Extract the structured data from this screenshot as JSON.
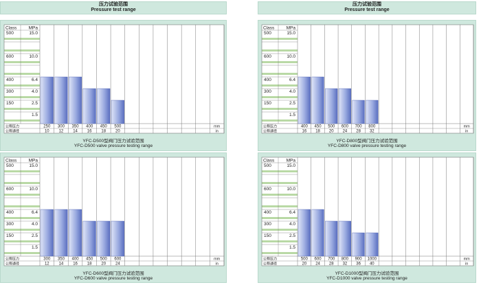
{
  "left_column": {
    "title_zh": "压力试验范围",
    "title_en": "Pressure test range"
  },
  "right_column": {
    "title_zh": "压力试验范围",
    "title_en": "Pressure test range"
  },
  "labels": {
    "class": "Class",
    "mpa": "MPa",
    "nominal_size": "公称压力",
    "nominal_bore": "公称通径",
    "mm": "mm",
    "in": "in"
  },
  "y_ticks": [
    {
      "class": "500",
      "mpa": "15.0"
    },
    {
      "class": "",
      "mpa": ""
    },
    {
      "class": "600",
      "mpa": "10.0"
    },
    {
      "class": "",
      "mpa": ""
    },
    {
      "class": "400",
      "mpa": "6.4"
    },
    {
      "class": "300",
      "mpa": "4.0"
    },
    {
      "class": "150",
      "mpa": "2.5"
    },
    {
      "class": "",
      "mpa": "1.5"
    }
  ],
  "chart_data": [
    {
      "type": "bar",
      "caption_zh": "YFC-D500型阀门压力试验范围",
      "caption_en": "YFC-D500 valve pressure testing range",
      "categories_mm": [
        "250",
        "300",
        "350",
        "400",
        "450",
        "500"
      ],
      "categories_in": [
        "10",
        "12",
        "14",
        "16",
        "18",
        "20"
      ],
      "values": [
        6.4,
        6.4,
        6.4,
        4.0,
        4.0,
        2.5
      ],
      "empty_columns": 7
    },
    {
      "type": "bar",
      "caption_zh": "YFC-D600型阀门压力试验范围",
      "caption_en": "YFC-D600 valve pressure testing range",
      "categories_mm": [
        "300",
        "350",
        "400",
        "450",
        "500",
        "600"
      ],
      "categories_in": [
        "12",
        "14",
        "16",
        "18",
        "20",
        "24"
      ],
      "values": [
        6.4,
        6.4,
        6.4,
        4.0,
        4.0,
        4.0
      ],
      "empty_columns": 7
    },
    {
      "type": "bar",
      "caption_zh": "YFC-D800型阀门压力试验范围",
      "caption_en": "YFC-D800 valve pressure testing range",
      "categories_mm": [
        "400",
        "450",
        "500",
        "600",
        "700",
        "800"
      ],
      "categories_in": [
        "16",
        "18",
        "20",
        "24",
        "28",
        "32"
      ],
      "values": [
        6.4,
        6.4,
        4.0,
        4.0,
        2.5,
        2.5
      ],
      "empty_columns": 7
    },
    {
      "type": "bar",
      "caption_zh": "YFC-D1000型阀门压力试验范围",
      "caption_en": "YFC-D1000 valve pressure testing range",
      "categories_mm": [
        "500",
        "600",
        "700",
        "800",
        "900",
        "1000"
      ],
      "categories_in": [
        "20",
        "24",
        "28",
        "32",
        "36",
        "40"
      ],
      "values": [
        6.4,
        6.4,
        4.0,
        4.0,
        2.5,
        2.5
      ],
      "empty_columns": 7
    }
  ],
  "colors": {
    "panel": "#cfe8de",
    "bar_light": "#dfe5f7",
    "bar_dark": "#5a6fc0",
    "band_green": "#a8cf8e",
    "grid": "#777777"
  }
}
